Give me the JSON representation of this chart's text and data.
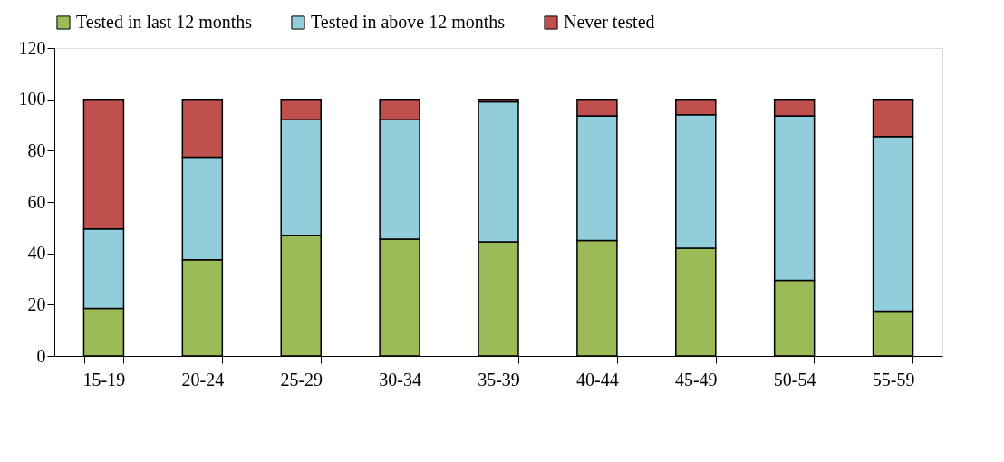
{
  "chart_data": {
    "type": "bar",
    "stacked": true,
    "categories": [
      "15-19",
      "20-24",
      "25-29",
      "30-34",
      "35-39",
      "40-44",
      "45-49",
      "50-54",
      "55-59"
    ],
    "series": [
      {
        "name": "Tested in last 12 months",
        "color": "#9bbb59",
        "values": [
          18.5,
          37.5,
          47,
          45.5,
          44.5,
          45,
          42,
          29.5,
          17.5
        ]
      },
      {
        "name": "Tested in above 12 months",
        "color": "#92cddc",
        "values": [
          31,
          40,
          45,
          46.5,
          54.5,
          48.5,
          52,
          64,
          68
        ]
      },
      {
        "name": "Never tested",
        "color": "#c0504d",
        "values": [
          50.5,
          22.5,
          8,
          8,
          1,
          6.5,
          6,
          6.5,
          14.5
        ]
      }
    ],
    "ylim": [
      0,
      120
    ],
    "yticks": [
      0,
      20,
      40,
      60,
      80,
      100,
      120
    ],
    "grid": false,
    "legend": "top"
  }
}
